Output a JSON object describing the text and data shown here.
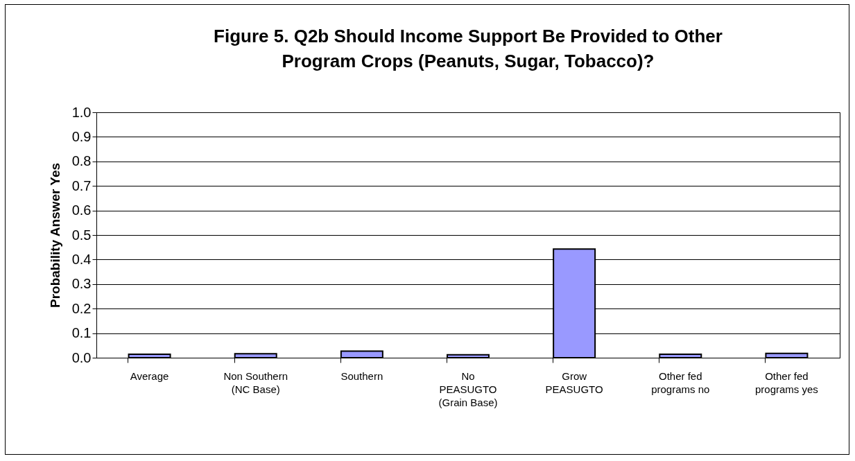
{
  "chart_data": {
    "type": "bar",
    "title": "Figure 5.  Q2b  Should Income Support Be Provided to Other\nProgram Crops (Peanuts, Sugar, Tobacco)?",
    "ylabel": "Probability Answer Yes",
    "categories": [
      "Average",
      "Non Southern\n(NC Base)",
      "Southern",
      "No\nPEASUGTO\n(Grain Base)",
      "Grow\nPEASUGTO",
      "Other fed\nprograms no",
      "Other fed\nprograms yes"
    ],
    "values": [
      0.014,
      0.016,
      0.027,
      0.012,
      0.443,
      0.014,
      0.018
    ],
    "color": "#9999ff",
    "ylim": [
      0,
      1
    ],
    "yticks": [
      {
        "value": 0,
        "label": "0.0"
      },
      {
        "value": 0.1,
        "label": "0.1"
      },
      {
        "value": 0.2,
        "label": "0.2"
      },
      {
        "value": 0.3,
        "label": "0.3"
      },
      {
        "value": 0.4,
        "label": "0.4"
      },
      {
        "value": 0.5,
        "label": "0.5"
      },
      {
        "value": 0.6,
        "label": "0.6"
      },
      {
        "value": 0.7,
        "label": "0.7"
      },
      {
        "value": 0.8,
        "label": "0.8"
      },
      {
        "value": 0.9,
        "label": "0.9"
      },
      {
        "value": 1,
        "label": "1.0"
      }
    ],
    "grid": "y"
  }
}
